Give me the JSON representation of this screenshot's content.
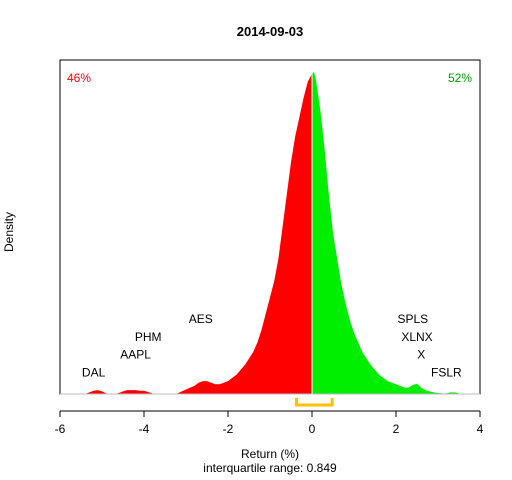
{
  "chart_data": {
    "type": "area",
    "title": "2014-09-03",
    "xlabel": "Return (%)",
    "ylabel": "Density",
    "subtitle": "interquartile range: 0.849",
    "xlim": [
      -6,
      4
    ],
    "x_ticks": [
      -6,
      -4,
      -2,
      0,
      2,
      4
    ],
    "y_max": 1.0,
    "split_at": 0,
    "pct_negative": "46%",
    "pct_positive": "52%",
    "negative_color": "#ff0000",
    "positive_color": "#00ee00",
    "iqr": {
      "low": -0.37,
      "high": 0.48,
      "color": "#ffc000"
    },
    "density": {
      "x": [
        -5.4,
        -5.3,
        -5.2,
        -5.1,
        -5.0,
        -4.9,
        -4.8,
        -4.7,
        -4.6,
        -4.5,
        -4.4,
        -4.3,
        -4.2,
        -4.1,
        -4.0,
        -3.9,
        -3.8,
        -3.7,
        -3.6,
        -3.5,
        -3.4,
        -3.3,
        -3.2,
        -3.1,
        -3.0,
        -2.9,
        -2.8,
        -2.7,
        -2.6,
        -2.5,
        -2.4,
        -2.3,
        -2.2,
        -2.1,
        -2.0,
        -1.9,
        -1.8,
        -1.7,
        -1.6,
        -1.5,
        -1.4,
        -1.3,
        -1.2,
        -1.1,
        -1.0,
        -0.9,
        -0.8,
        -0.7,
        -0.6,
        -0.5,
        -0.4,
        -0.3,
        -0.2,
        -0.1,
        0.0,
        0.05,
        0.1,
        0.2,
        0.3,
        0.4,
        0.5,
        0.6,
        0.7,
        0.8,
        0.9,
        1.0,
        1.1,
        1.2,
        1.3,
        1.4,
        1.5,
        1.6,
        1.7,
        1.8,
        1.9,
        2.0,
        2.1,
        2.2,
        2.3,
        2.4,
        2.5,
        2.6,
        2.7,
        2.8,
        2.9,
        3.0,
        3.1,
        3.2,
        3.3,
        3.4,
        3.5,
        3.6
      ],
      "y": [
        0,
        0.005,
        0.01,
        0.012,
        0.008,
        0.002,
        0,
        0,
        0.003,
        0.008,
        0.012,
        0.012,
        0.012,
        0.01,
        0.01,
        0.006,
        0.002,
        0,
        0,
        0,
        0,
        0,
        0.002,
        0.008,
        0.014,
        0.02,
        0.025,
        0.035,
        0.04,
        0.04,
        0.035,
        0.03,
        0.03,
        0.035,
        0.04,
        0.05,
        0.06,
        0.075,
        0.09,
        0.11,
        0.13,
        0.16,
        0.2,
        0.25,
        0.3,
        0.35,
        0.42,
        0.52,
        0.62,
        0.72,
        0.8,
        0.86,
        0.92,
        0.97,
        0.995,
        1.0,
        0.97,
        0.88,
        0.76,
        0.62,
        0.5,
        0.42,
        0.34,
        0.28,
        0.23,
        0.19,
        0.16,
        0.13,
        0.11,
        0.09,
        0.075,
        0.06,
        0.05,
        0.04,
        0.035,
        0.03,
        0.025,
        0.02,
        0.02,
        0.028,
        0.032,
        0.02,
        0.012,
        0.008,
        0.005,
        0.003,
        0.002,
        0.002,
        0.005,
        0.005,
        0.002,
        0
      ]
    },
    "annotations": [
      {
        "label": "DAL",
        "x": -5.2,
        "y": 0.055
      },
      {
        "label": "AAPL",
        "x": -4.2,
        "y": 0.11
      },
      {
        "label": "PHM",
        "x": -3.9,
        "y": 0.165
      },
      {
        "label": "AES",
        "x": -2.65,
        "y": 0.22
      },
      {
        "label": "SPLS",
        "x": 2.4,
        "y": 0.22
      },
      {
        "label": "XLNX",
        "x": 2.5,
        "y": 0.165
      },
      {
        "label": "X",
        "x": 2.6,
        "y": 0.11
      },
      {
        "label": "FSLR",
        "x": 3.2,
        "y": 0.055
      }
    ]
  }
}
